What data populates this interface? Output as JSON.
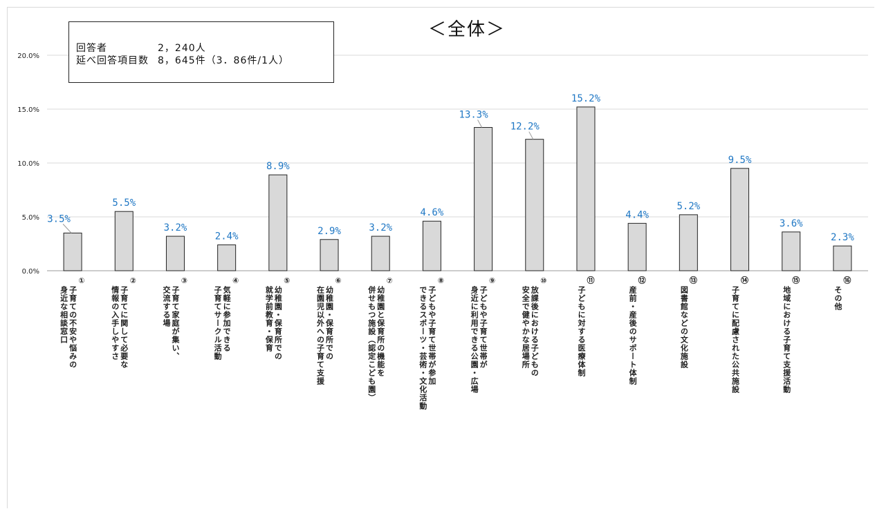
{
  "chart_data": {
    "type": "bar",
    "title": "＜全体＞",
    "ylim": [
      0,
      20
    ],
    "yticks": [
      "0.0%",
      "5.0%",
      "10.0%",
      "15.0%",
      "20.0%"
    ],
    "grid": "horizontal",
    "categories": [
      "①子育ての不安や悩みの身近な相談窓口",
      "②子育てに関して必要な情報の入手しやすさ",
      "③子育て家庭が集い、交流する場",
      "④気軽に参加できる子育てサークル活動",
      "⑤幼稚園・保育所での就学前教育・保育",
      "⑥幼稚園・保育所での在園児以外への子育て支援",
      "⑦幼稚園と保育所の機能を併せもつ施設（認定こども園）",
      "⑧子どもや子育て世帯が参加できるスポーツ・芸術・文化活動",
      "⑨子どもや子育て世帯が身近に利用できる公園・広場",
      "⑩放課後における子どもの安全で健やかな居場所",
      "⑪子どもに対する医療体制",
      "⑫産前・産後のサポート体制",
      "⑬図書館などの文化施設",
      "⑭子育てに配慮された公共施設",
      "⑮地域における子育て支援活動",
      "⑯その他"
    ],
    "values": [
      3.5,
      5.5,
      3.2,
      2.4,
      8.9,
      2.9,
      3.2,
      4.6,
      13.3,
      12.2,
      15.2,
      4.4,
      5.2,
      9.5,
      3.6,
      2.3
    ],
    "data_labels": [
      "3.5%",
      "5.5%",
      "3.2%",
      "2.4%",
      "8.9%",
      "2.9%",
      "3.2%",
      "4.6%",
      "13.3%",
      "12.2%",
      "15.2%",
      "4.4%",
      "5.2%",
      "9.5%",
      "3.6%",
      "2.3%"
    ],
    "category_label_columns": [
      [
        "①",
        "子育ての不安や悩みの",
        "身近な相談窓口"
      ],
      [
        "②",
        "子育てに関して必要な",
        "情報の入手しやすさ"
      ],
      [
        "③",
        "子育て家庭が集い、",
        "交流する場"
      ],
      [
        "④",
        "気軽に参加できる",
        "子育てサークル活動"
      ],
      [
        "⑤",
        "幼稚園・保育所での",
        "就学前教育・保育"
      ],
      [
        "⑥",
        "幼稚園・保育所での",
        "在園児以外への子育て支援"
      ],
      [
        "⑦",
        "幼稚園と保育所の機能を",
        "併せもつ施設（認定こども園）"
      ],
      [
        "⑧",
        "子どもや子育て世帯が参加",
        "できるスポーツ・芸術・文化活動"
      ],
      [
        "⑨",
        "子どもや子育て世帯が",
        "身近に利用できる公園・広場"
      ],
      [
        "⑩",
        "放課後における子どもの",
        "安全で健やかな居場所"
      ],
      [
        "⑪",
        "子どもに対する医療体制"
      ],
      [
        "⑫",
        "産前・産後のサポート体制"
      ],
      [
        "⑬",
        "図書館などの文化施設"
      ],
      [
        "⑭",
        "子育てに配慮された公共施設"
      ],
      [
        "⑮",
        "地域における子育て支援活動"
      ],
      [
        "⑯",
        "その他"
      ]
    ],
    "bar_color": "#d9d9d9",
    "bar_edge_color": "#222222",
    "label_color": "#1f77c4"
  },
  "info_box": {
    "respondents_label": "回答者",
    "respondents_value": "2，240人",
    "responses_label": "延べ回答項目数",
    "responses_value": "8，645件（3．86件/1人）"
  }
}
